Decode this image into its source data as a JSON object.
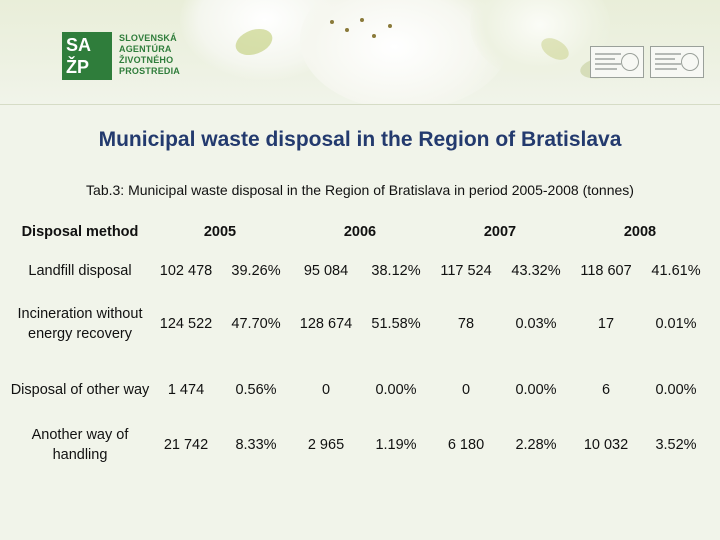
{
  "logo": {
    "mark_letters": [
      "SA",
      "ŽP"
    ],
    "name_lines": [
      "SLOVENSKÁ",
      "AGENTÚRA",
      "ŽIVOTNÉHO",
      "PROSTREDIA"
    ]
  },
  "title": "Municipal waste disposal in the Region of Bratislava",
  "caption": "Tab.3: Municipal waste disposal in the Region of Bratislava in period 2005-2008 (tonnes)",
  "table": {
    "header": {
      "method": "Disposal method",
      "years": [
        "2005",
        "2006",
        "2007",
        "2008"
      ]
    },
    "rows": [
      {
        "label": "Landfill disposal",
        "cells": [
          "102 478",
          "39.26%",
          "95 084",
          "38.12%",
          "117 524",
          "43.32%",
          "118 607",
          "41.61%"
        ]
      },
      {
        "label": "Incineration without energy recovery",
        "cells": [
          "124 522",
          "47.70%",
          "128 674",
          "51.58%",
          "78",
          "0.03%",
          "17",
          "0.01%"
        ]
      },
      {
        "label": "Disposal of other way",
        "cells": [
          "1 474",
          "0.56%",
          "0",
          "0.00%",
          "0",
          "0.00%",
          "6",
          "0.00%"
        ]
      },
      {
        "label": "Another way of handling",
        "cells": [
          "21 742",
          "8.33%",
          "2 965",
          "1.19%",
          "6 180",
          "2.28%",
          "10 032",
          "3.52%"
        ]
      }
    ]
  },
  "colors": {
    "title": "#233a6e",
    "logo_green": "#2f7d3b",
    "background": "#f1f4ea"
  }
}
